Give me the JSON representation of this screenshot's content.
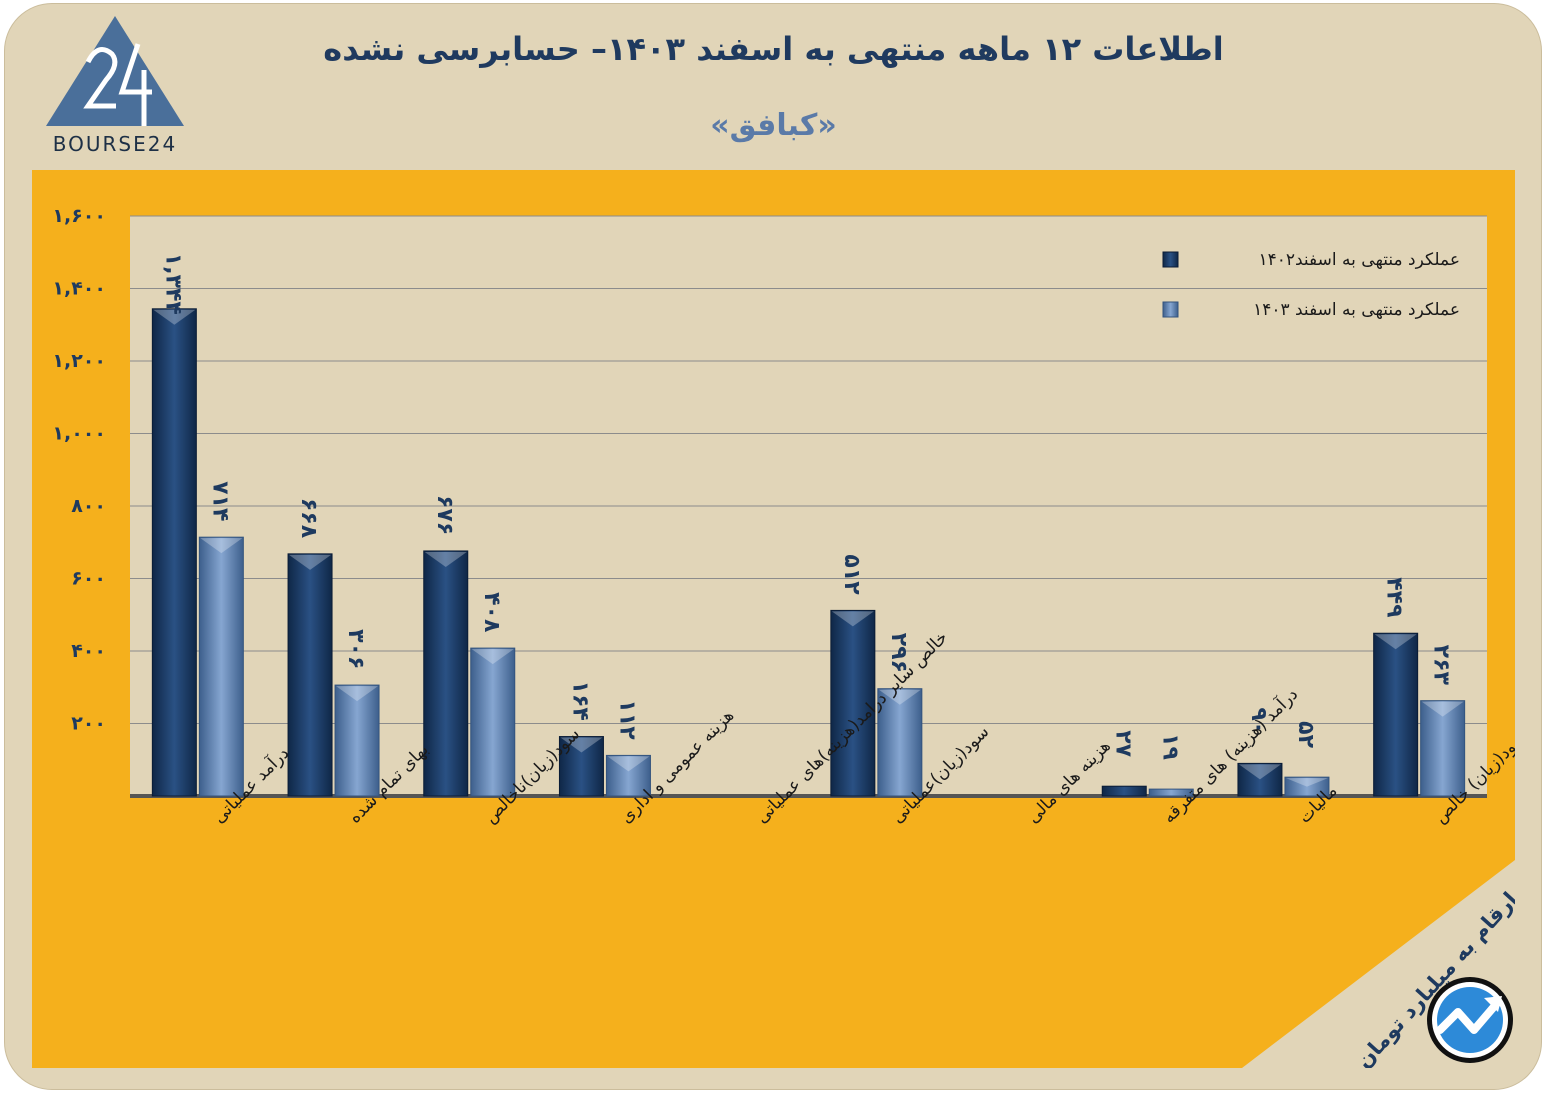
{
  "header": {
    "title": "اطلاعات ۱۲ ماهه منتهی به اسفند  ۱۴۰۳– حسابرسی نشده",
    "subtitle": "«کبافق»",
    "logo_text": "BOURSE24"
  },
  "footer": {
    "unit_note": "ارقام به میلیارد تومان"
  },
  "colors": {
    "series1": "#1b3a63",
    "series2": "#5479a8",
    "panel": "#f5b01c",
    "frame": "#e1d5b8"
  },
  "chart_data": {
    "type": "bar",
    "title": "اطلاعات ۱۲ ماهه منتهی به اسفند  ۱۴۰۳– حسابرسی نشده",
    "xlabel": "",
    "ylabel": "",
    "ylim": [
      0,
      1600
    ],
    "yticks": [
      200,
      400,
      600,
      800,
      1000,
      1200,
      1400,
      1600
    ],
    "ytick_labels": [
      "۲۰۰",
      "۴۰۰",
      "۶۰۰",
      "۸۰۰",
      "۱,۰۰۰",
      "۱,۲۰۰",
      "۱,۴۰۰",
      "۱,۶۰۰"
    ],
    "grid": true,
    "legend_position": "top-right",
    "categories": [
      "درآمد عملیاتی",
      "بهای تمام شده",
      "سود(زیان)ناخالص",
      "هزینه عمومی و اداری",
      "خالص سایر درامد(هزینه)های عملیاتی",
      "سود(زیان)عملیاتی",
      "هزینه های مالی",
      "درآمد (هزینه) های متفرقه",
      "مالیات",
      "سود(زیان) خالص"
    ],
    "series": [
      {
        "name": "عملکرد منتهی به اسفند۱۴۰۲",
        "values": [
          1344,
          668,
          676,
          164,
          null,
          512,
          null,
          27,
          90,
          449
        ],
        "labels": [
          "۱,۳۴۴",
          "۶۶۸",
          "۶۷۶",
          "۱۶۴",
          "",
          "۵۱۲",
          "",
          "۲۷",
          "۹۰",
          "۴۴۹"
        ]
      },
      {
        "name": "عملکرد منتهی به اسفند ۱۴۰۳",
        "values": [
          714,
          306,
          408,
          112,
          null,
          296,
          null,
          19,
          52,
          263
        ],
        "labels": [
          "۷۱۴",
          "۳۰۶",
          "۴۰۸",
          "۱۱۲",
          "",
          "۲۹۶",
          "",
          "۱۹",
          "۵۲",
          "۲۶۳"
        ]
      }
    ]
  }
}
